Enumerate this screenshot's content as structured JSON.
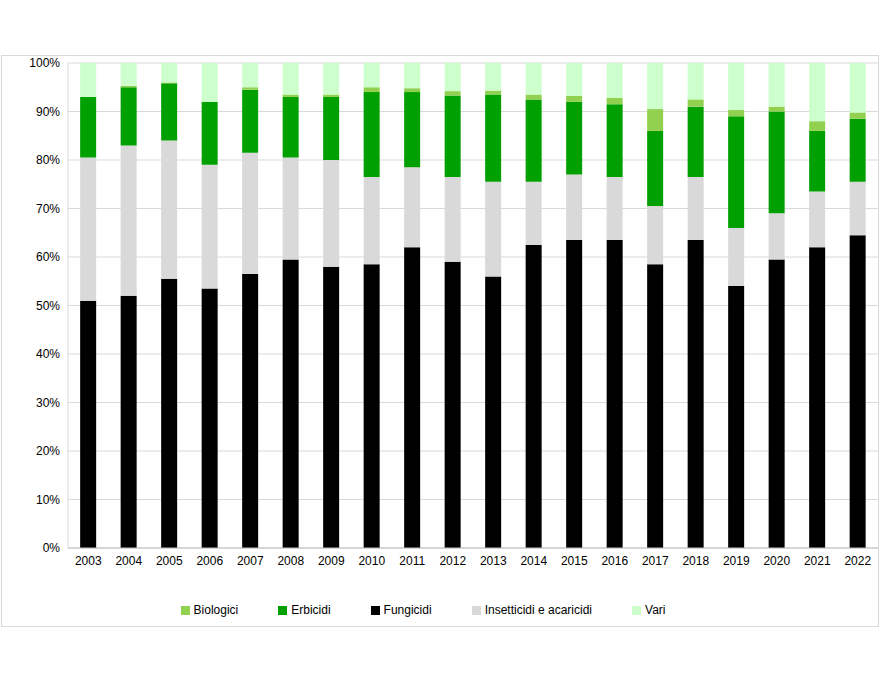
{
  "chart_data": {
    "type": "bar",
    "stacked": true,
    "grid": true,
    "legend": "bottom",
    "categories": [
      "2003",
      "2004",
      "2005",
      "2006",
      "2007",
      "2008",
      "2009",
      "2010",
      "2011",
      "2012",
      "2013",
      "2014",
      "2015",
      "2016",
      "2017",
      "2018",
      "2019",
      "2020",
      "2021",
      "2022"
    ],
    "series": [
      {
        "name": "Fungicidi",
        "color": "#000000",
        "values": [
          51,
          52,
          55.5,
          53.5,
          56.5,
          59.5,
          58,
          58.5,
          62,
          59,
          56,
          62.5,
          63.5,
          63.5,
          58.5,
          63.5,
          54,
          59.5,
          62,
          64.5
        ]
      },
      {
        "name": "Insetticidi e acaricidi",
        "color": "#d9d9d9",
        "values": [
          29.5,
          31,
          28.5,
          25.5,
          25,
          21,
          22,
          18,
          16.5,
          17.5,
          19.5,
          13,
          13.5,
          13,
          12,
          13,
          12,
          9.5,
          11.5,
          11
        ]
      },
      {
        "name": "Erbicidi",
        "color": "#00a000",
        "values": [
          12.5,
          12,
          11.8,
          13,
          13,
          12.5,
          13,
          17.5,
          15.5,
          16.8,
          18,
          17,
          15,
          15,
          15.5,
          14.5,
          23,
          21,
          12.5,
          13
        ]
      },
      {
        "name": "Biologici",
        "color": "#92d050",
        "values": [
          0,
          0.3,
          0.2,
          0,
          0.5,
          0.5,
          0.5,
          1,
          0.8,
          0.9,
          0.8,
          1,
          1.2,
          1.3,
          4.5,
          1.5,
          1.3,
          1,
          2,
          1.3
        ]
      },
      {
        "name": "Vari",
        "color": "#ccffcc",
        "values": [
          7,
          4.7,
          4,
          8,
          5,
          6.5,
          6.5,
          5,
          5.2,
          5.8,
          5.7,
          6.5,
          6.8,
          7.2,
          9.5,
          7.5,
          9.7,
          9,
          12,
          10.2
        ]
      }
    ],
    "ylim": [
      0,
      100
    ],
    "yticks": [
      {
        "value": 0,
        "label": "0%"
      },
      {
        "value": 10,
        "label": "10%"
      },
      {
        "value": 20,
        "label": "20%"
      },
      {
        "value": 30,
        "label": "30%"
      },
      {
        "value": 40,
        "label": "40%"
      },
      {
        "value": 50,
        "label": "50%"
      },
      {
        "value": 60,
        "label": "60%"
      },
      {
        "value": 70,
        "label": "70%"
      },
      {
        "value": 80,
        "label": "80%"
      },
      {
        "value": 90,
        "label": "90%"
      },
      {
        "value": 100,
        "label": "100%"
      }
    ]
  }
}
